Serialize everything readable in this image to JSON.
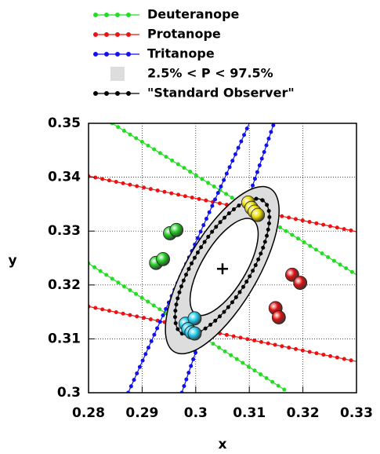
{
  "chart_data": {
    "type": "scatter",
    "xlabel": "x",
    "ylabel": "y",
    "xlim": [
      0.28,
      0.33
    ],
    "ylim": [
      0.3,
      0.35
    ],
    "xticks": [
      0.28,
      0.29,
      0.3,
      0.31,
      0.32,
      0.33
    ],
    "yticks": [
      0.3,
      0.31,
      0.32,
      0.33,
      0.34,
      0.35
    ],
    "grid": true,
    "series": [
      {
        "name": "Deuteranope",
        "color": "#22dd22",
        "x": [
          0.2844,
          0.33,
          null,
          0.28,
          0.3168
        ],
        "y": [
          0.35,
          0.3219,
          null,
          0.324,
          0.3004
        ]
      },
      {
        "name": "Protanope",
        "color": "#ee1111",
        "x": [
          0.28,
          0.33,
          null,
          0.28,
          0.33
        ],
        "y": [
          0.3402,
          0.3299,
          null,
          0.316,
          0.3058
        ]
      },
      {
        "name": "Tritanope",
        "color": "#1111ee",
        "x": [
          0.2874,
          0.31,
          null,
          0.2974,
          0.3146
        ],
        "y": [
          0.3,
          0.35,
          null,
          0.3,
          0.35
        ]
      },
      {
        "name": "2.5% < P < 97.5%",
        "color": "#dddddd",
        "x": [
          0.296,
          0.3139
        ],
        "y": [
          0.3076,
          0.3379
        ],
        "minor": 0.0066,
        "inner": {
          "x": [
            0.3,
            0.3106
          ],
          "y": [
            0.3146,
            0.3321
          ],
          "minor": 0.0041
        }
      },
      {
        "name": "\"Standard Observer\"",
        "color": "#000000",
        "x": [
          0.2974,
          0.3125
        ],
        "y": [
          0.311,
          0.3357
        ],
        "minor": 0.0053,
        "center": [
          0.305,
          0.323
        ]
      }
    ],
    "points": [
      {
        "color": "#22cc22",
        "x": [
          0.2952,
          0.2964,
          0.2926,
          0.2939
        ],
        "y": [
          0.3296,
          0.3302,
          0.3241,
          0.3248
        ]
      },
      {
        "color": "#dd1111",
        "x": [
          0.318,
          0.3195,
          0.3149,
          0.3155
        ],
        "y": [
          0.3219,
          0.3204,
          0.3157,
          0.314
        ]
      },
      {
        "color": "#eedd00",
        "x": [
          0.3098,
          0.3104,
          0.311,
          0.3116
        ],
        "y": [
          0.3353,
          0.3343,
          0.3336,
          0.333
        ]
      },
      {
        "color": "#22ccee",
        "x": [
          0.2981,
          0.2998,
          0.2986,
          0.2992,
          0.2998
        ],
        "y": [
          0.3128,
          0.3138,
          0.3118,
          0.3112,
          0.311
        ]
      }
    ]
  }
}
